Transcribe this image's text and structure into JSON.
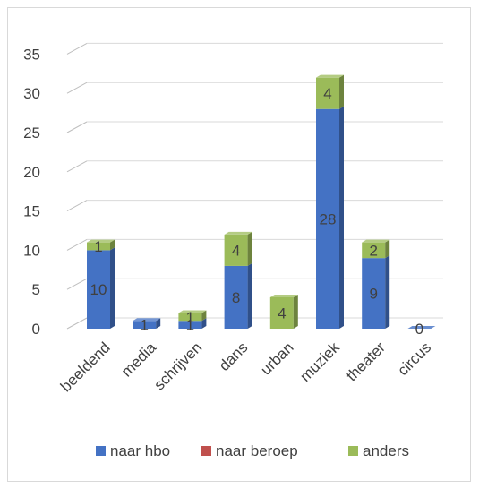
{
  "chart_data": {
    "type": "bar",
    "stacked": true,
    "three_d": true,
    "categories": [
      "beeldend",
      "media",
      "schrijven",
      "dans",
      "urban",
      "muziek",
      "theater",
      "circus"
    ],
    "series": [
      {
        "name": "naar hbo",
        "color": "#4472c4",
        "values": [
          10,
          1,
          1,
          8,
          0,
          28,
          9,
          0
        ]
      },
      {
        "name": "naar beroep",
        "color": "#c0504d",
        "values": [
          0,
          0,
          0,
          0,
          0,
          0,
          0,
          0
        ]
      },
      {
        "name": "anders",
        "color": "#9bbb59",
        "values": [
          1,
          0,
          1,
          4,
          4,
          4,
          2,
          0
        ]
      }
    ],
    "data_labels": [
      {
        "category": "beeldend",
        "series": "naar hbo",
        "text": "10"
      },
      {
        "category": "beeldend",
        "series": "anders",
        "text": "1"
      },
      {
        "category": "media",
        "series": "naar hbo",
        "text": "1"
      },
      {
        "category": "schrijven",
        "series": "naar hbo",
        "text": "1"
      },
      {
        "category": "schrijven",
        "series": "anders",
        "text": "1"
      },
      {
        "category": "dans",
        "series": "naar hbo",
        "text": "8"
      },
      {
        "category": "dans",
        "series": "anders",
        "text": "4"
      },
      {
        "category": "urban",
        "series": "anders",
        "text": "4"
      },
      {
        "category": "muziek",
        "series": "naar hbo",
        "text": "28"
      },
      {
        "category": "muziek",
        "series": "anders",
        "text": "4"
      },
      {
        "category": "theater",
        "series": "naar hbo",
        "text": "9"
      },
      {
        "category": "theater",
        "series": "anders",
        "text": "2"
      },
      {
        "category": "circus",
        "series": "naar hbo",
        "text": "0"
      }
    ],
    "y_ticks": [
      "0",
      "5",
      "10",
      "15",
      "20",
      "25",
      "30",
      "35"
    ],
    "ylim": [
      0,
      35
    ],
    "grid": true,
    "legend_position": "bottom",
    "title": "",
    "xlabel": "",
    "ylabel": ""
  }
}
